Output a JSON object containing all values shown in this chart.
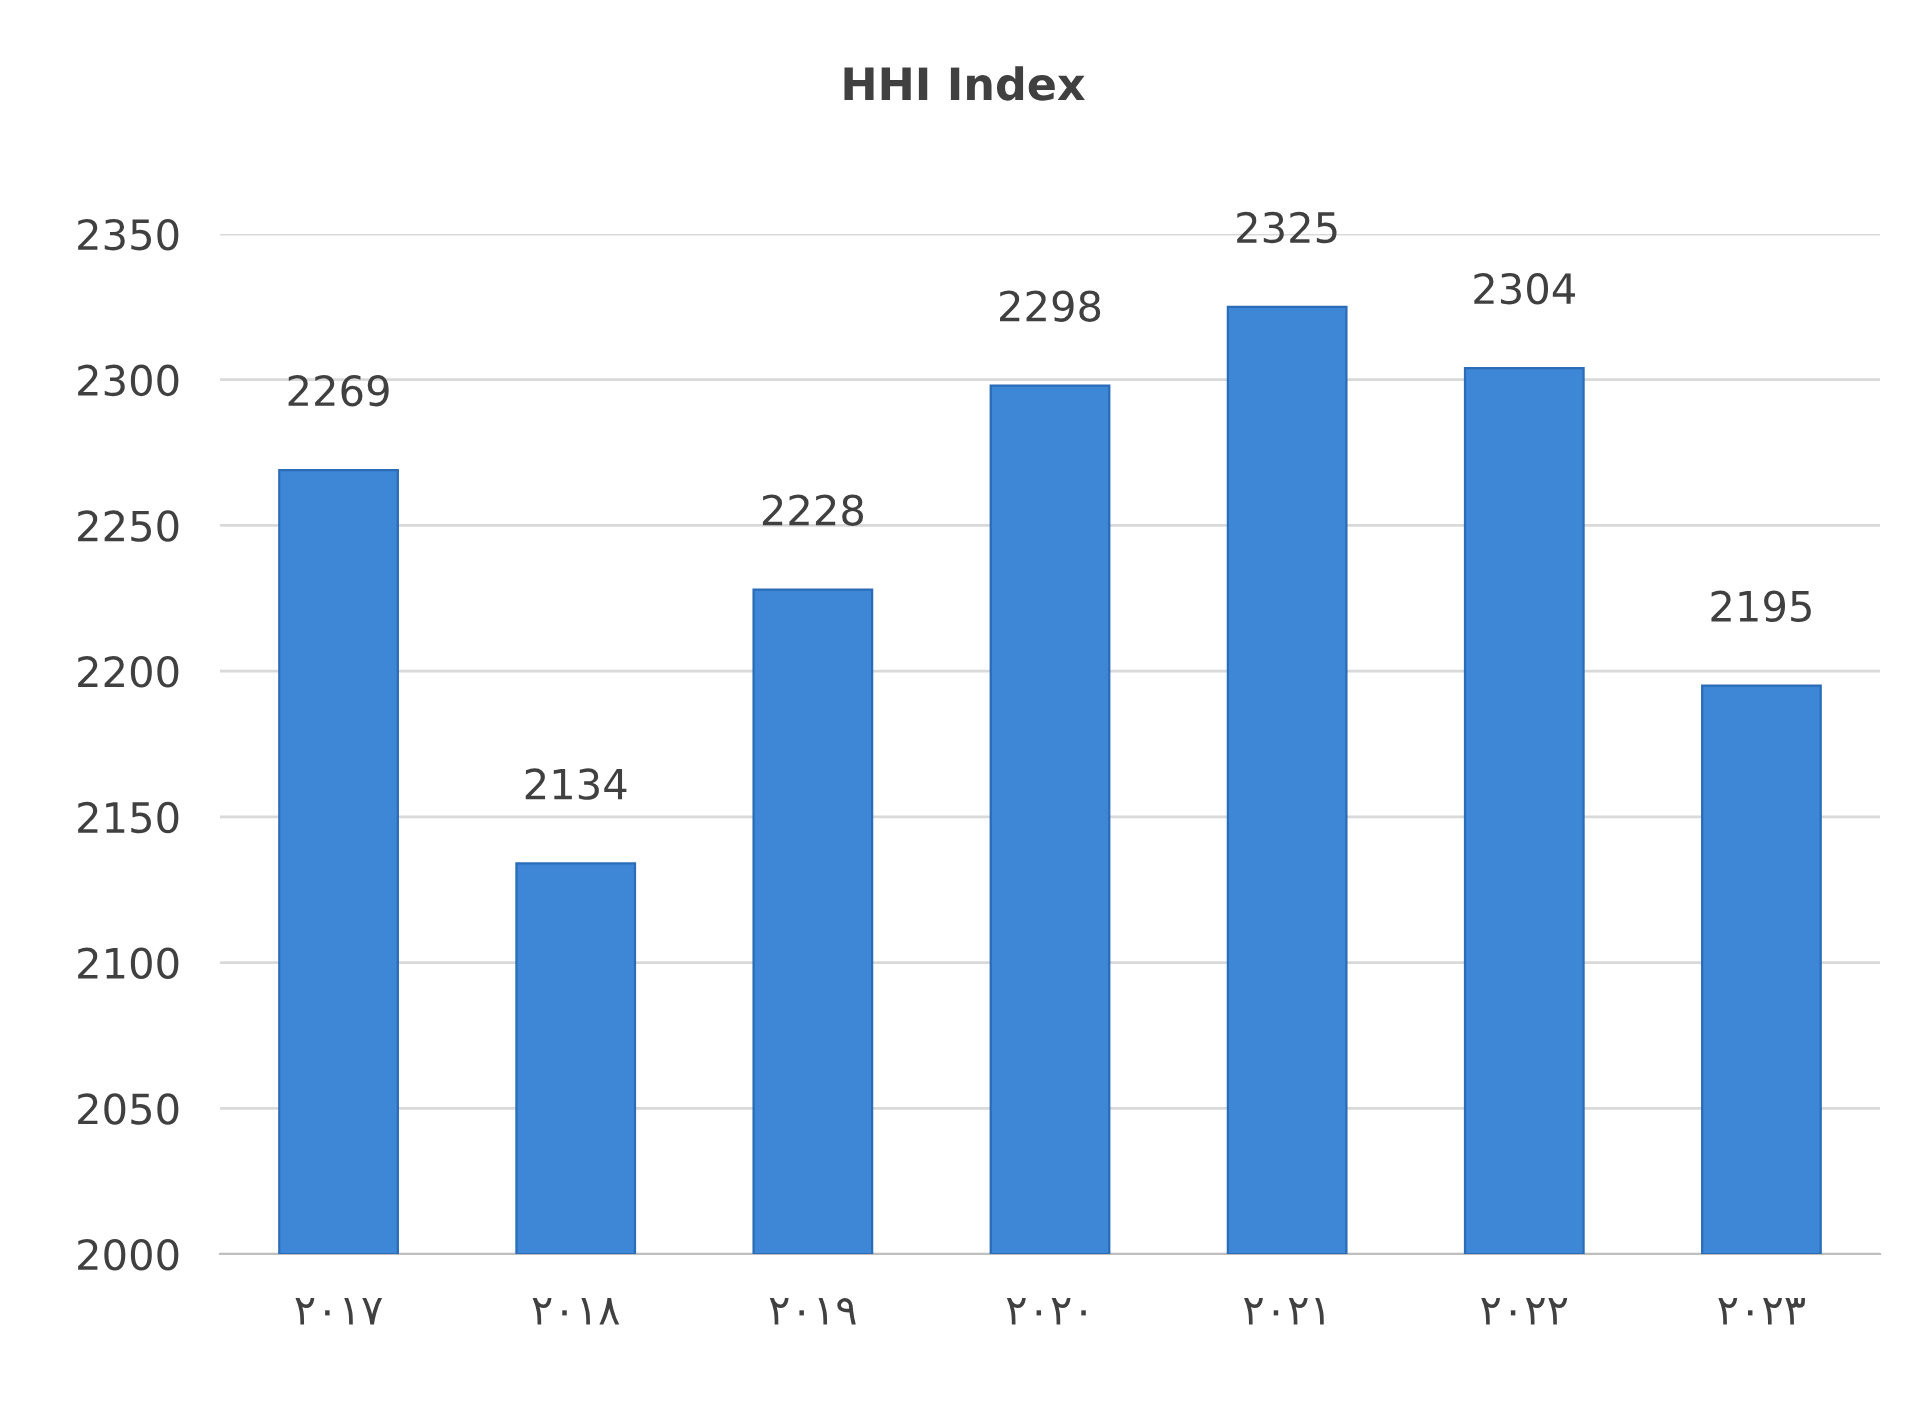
{
  "chart_data": {
    "type": "bar",
    "title": "HHI Index",
    "categories": [
      "٢٠١٧",
      "٢٠١٨",
      "٢٠١٩",
      "٢٠٢٠",
      "٢٠٢١",
      "٢٠٢٢",
      "٢٠٢٣"
    ],
    "values": [
      2269,
      2134,
      2228,
      2298,
      2325,
      2304,
      2195
    ],
    "color": "#3e86d6",
    "ylim": [
      2000,
      2350
    ],
    "yticks": [
      2000,
      2050,
      2100,
      2150,
      2200,
      2250,
      2300,
      2350
    ],
    "grid": "y",
    "data_labels": true,
    "legend": false
  }
}
